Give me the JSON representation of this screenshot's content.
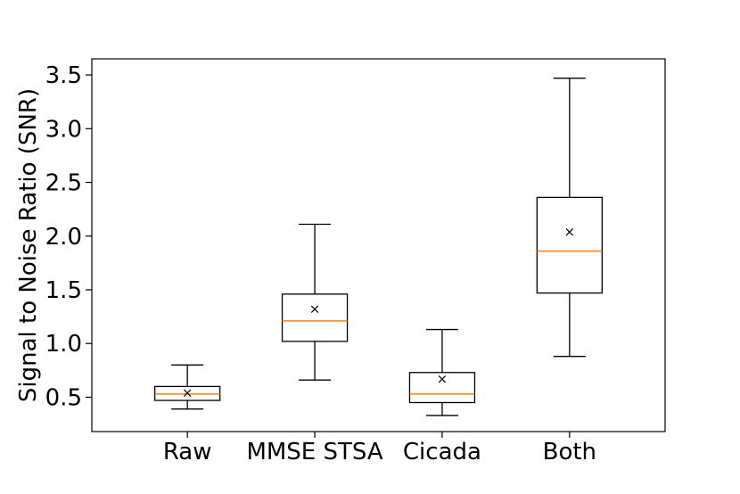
{
  "chart_data": {
    "type": "box",
    "title": "",
    "xlabel": "",
    "ylabel": "Signal to Noise Ratio (SNR)",
    "ylim": [
      0.18,
      3.65
    ],
    "yticks": [
      0.5,
      1.0,
      1.5,
      2.0,
      2.5,
      3.0,
      3.5
    ],
    "ytick_labels": [
      "0.5",
      "1.0",
      "1.5",
      "2.0",
      "2.5",
      "3.0",
      "3.5"
    ],
    "grid": false,
    "categories": [
      "Raw",
      "MMSE STSA",
      "Cicada",
      "Both"
    ],
    "boxes": [
      {
        "name": "Raw",
        "whisker_low": 0.39,
        "q1": 0.47,
        "median": 0.53,
        "q3": 0.6,
        "whisker_high": 0.8,
        "mean": 0.54
      },
      {
        "name": "MMSE STSA",
        "whisker_low": 0.66,
        "q1": 1.02,
        "median": 1.21,
        "q3": 1.46,
        "whisker_high": 2.11,
        "mean": 1.32
      },
      {
        "name": "Cicada",
        "whisker_low": 0.33,
        "q1": 0.45,
        "median": 0.53,
        "q3": 0.73,
        "whisker_high": 1.13,
        "mean": 0.67
      },
      {
        "name": "Both",
        "whisker_low": 0.88,
        "q1": 1.47,
        "median": 1.86,
        "q3": 2.36,
        "whisker_high": 3.47,
        "mean": 2.04
      }
    ],
    "colors": {
      "box": "#000000",
      "median": "#ff7f0e",
      "mean_marker": "#000000"
    },
    "mean_marker": "×"
  }
}
